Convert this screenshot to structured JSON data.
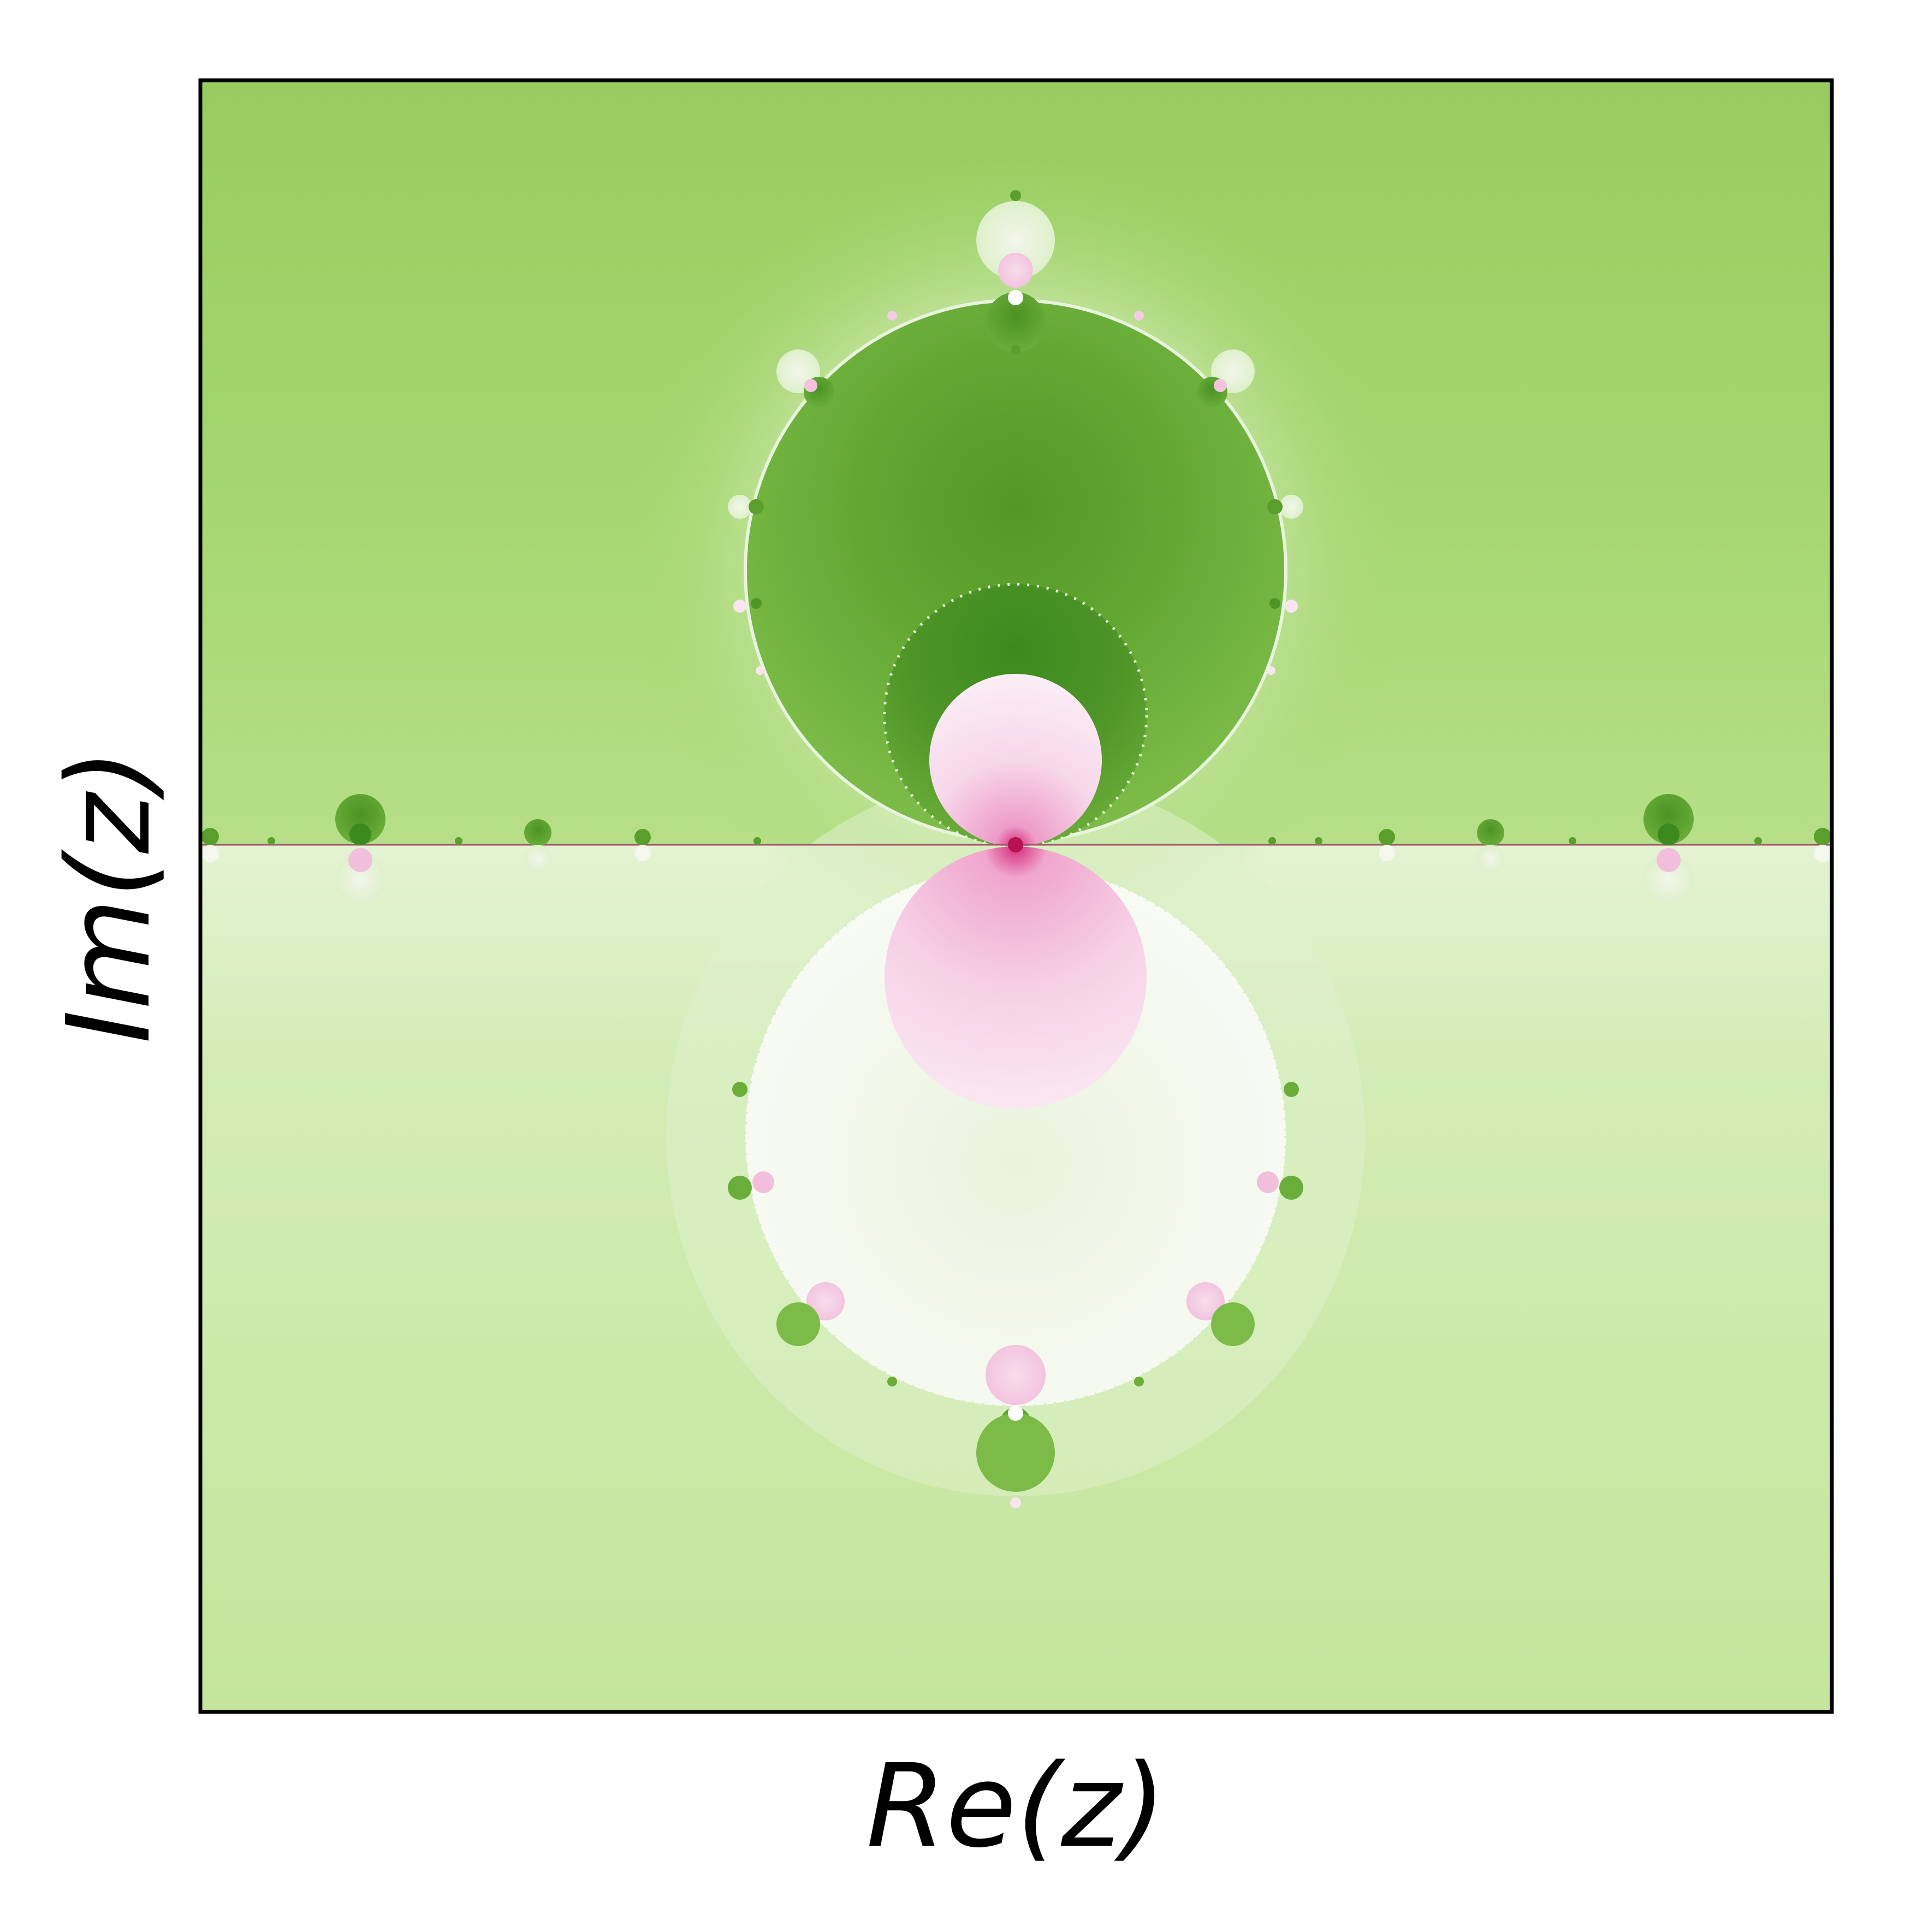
{
  "chart_data": {
    "type": "heatmap",
    "title": "",
    "xlabel": "Re(z)",
    "ylabel": "Im(z)",
    "x_ticks": [],
    "y_ticks": [],
    "grid": false,
    "legend": "none",
    "colormap": "PiYG",
    "colors": {
      "background_upper": "#9ccf64",
      "background_lower": "#c6e7a0",
      "cardioid_dark": "#5a9f2c",
      "inner_bulb": "#3d8a1f",
      "pink_core": "#f6d2e8",
      "magenta_center": "#c2185b",
      "pale_disc": "#f5f8ef",
      "frame": "#000000"
    }
  }
}
